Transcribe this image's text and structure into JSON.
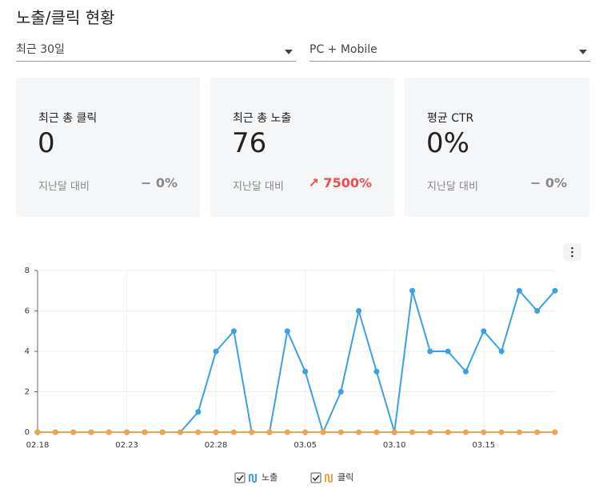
{
  "header": {
    "title": "노출/클릭 현황"
  },
  "filters": [
    {
      "label": "최근 30일"
    },
    {
      "label": "PC + Mobile"
    }
  ],
  "cards": [
    {
      "label": "최근 총 클릭",
      "value": "0",
      "compare": "지난달 대비",
      "change": "− 0%",
      "change_color": "#888888"
    },
    {
      "label": "최근 총 노출",
      "value": "76",
      "compare": "지난달 대비",
      "change": "↗ 7500%",
      "change_color": "#f04c4c"
    },
    {
      "label": "평균 CTR",
      "value": "0%",
      "compare": "지난달 대비",
      "change": "− 0%",
      "change_color": "#888888"
    }
  ],
  "chart_data": {
    "type": "line",
    "categories": [
      "02.18",
      null,
      null,
      null,
      null,
      "02.23",
      null,
      null,
      null,
      null,
      "02.28",
      null,
      null,
      null,
      null,
      "03.05",
      null,
      null,
      null,
      null,
      "03.10",
      null,
      null,
      null,
      null,
      "03.15",
      null,
      null,
      null,
      null
    ],
    "series": [
      {
        "name": "노출",
        "color": "#3aa0e8",
        "values": [
          0,
          0,
          0,
          0,
          0,
          0,
          0,
          0,
          0,
          1,
          4,
          5,
          0,
          0,
          5,
          3,
          0,
          2,
          6,
          3,
          0,
          7,
          4,
          4,
          3,
          5,
          4,
          7,
          6,
          7
        ]
      },
      {
        "name": "클릭",
        "color": "#f4a24a",
        "values": [
          0,
          0,
          0,
          0,
          0,
          0,
          0,
          0,
          0,
          0,
          0,
          0,
          0,
          0,
          0,
          0,
          0,
          0,
          0,
          0,
          0,
          0,
          0,
          0,
          0,
          0,
          0,
          0,
          0,
          0
        ]
      }
    ],
    "ylim": [
      0,
      8
    ],
    "yticks": [
      0,
      2,
      4,
      6,
      8
    ],
    "grid": true
  }
}
